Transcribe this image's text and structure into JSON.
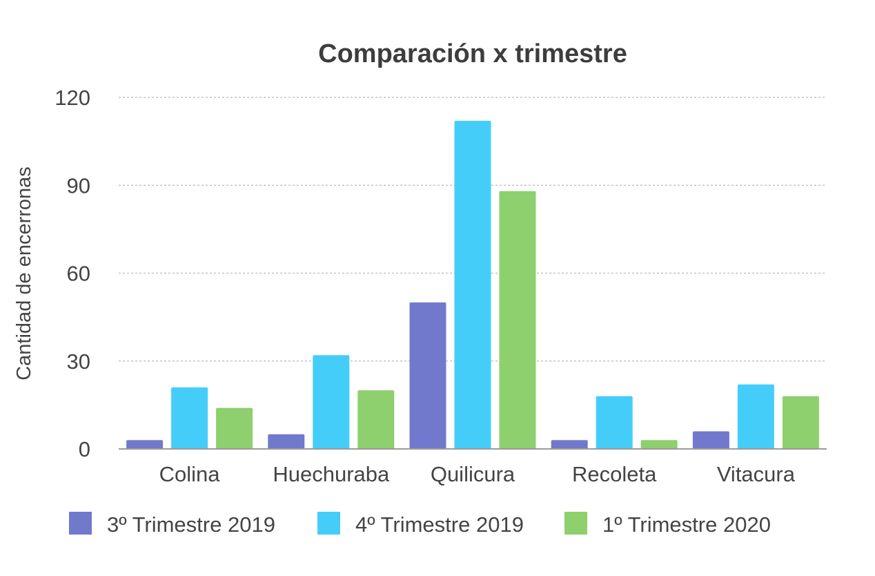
{
  "chart_data": {
    "type": "bar",
    "title": "Comparación x trimestre",
    "xlabel": "",
    "ylabel": "Cantidad  de encerronas",
    "ylim": [
      0,
      120
    ],
    "yticks": [
      0,
      30,
      60,
      90,
      120
    ],
    "grid": true,
    "legend_position": "bottom",
    "categories": [
      "Colina",
      "Huechuraba",
      "Quilicura",
      "Recoleta",
      "Vitacura"
    ],
    "series": [
      {
        "name": "3º Trimestre 2019",
        "color": "#7179cc",
        "values": [
          3,
          5,
          50,
          3,
          6
        ]
      },
      {
        "name": "4º Trimestre 2019",
        "color": "#45cdfa",
        "values": [
          21,
          32,
          112,
          18,
          22
        ]
      },
      {
        "name": "1º Trimestre 2020",
        "color": "#8ecf6e",
        "values": [
          14,
          20,
          88,
          3,
          18
        ]
      }
    ]
  }
}
